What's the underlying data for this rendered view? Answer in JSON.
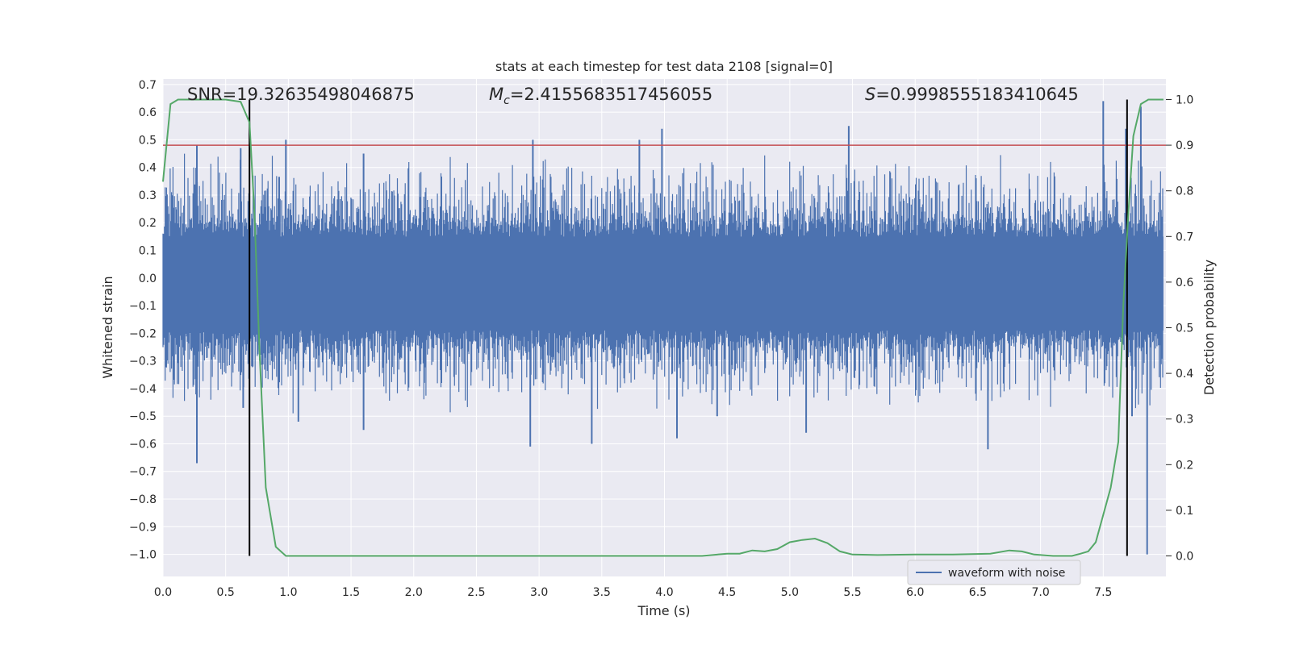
{
  "chart_data": {
    "type": "line",
    "title": "stats at each timestep for test data 2108 [signal=0]",
    "xlabel": "Time (s)",
    "ylabel": "Whitened strain",
    "ylabel_right": "Detection probability",
    "xlim": [
      0.0,
      8.0
    ],
    "ylim": [
      -1.08,
      0.72
    ],
    "ylim_right": [
      -0.045,
      1.045
    ],
    "grid": true,
    "xticks": [
      "0.0",
      "0.5",
      "1.0",
      "1.5",
      "2.0",
      "2.5",
      "3.0",
      "3.5",
      "4.0",
      "4.5",
      "5.0",
      "5.5",
      "6.0",
      "6.5",
      "7.0",
      "7.5"
    ],
    "yticks": [
      "0.7",
      "0.6",
      "0.5",
      "0.4",
      "0.3",
      "0.2",
      "0.1",
      "0.0",
      "−0.1",
      "−0.2",
      "−0.3",
      "−0.4",
      "−0.5",
      "−0.6",
      "−0.7",
      "−0.8",
      "−0.9",
      "−1.0"
    ],
    "yticks_right": [
      "1.0",
      "0.9",
      "0.8",
      "0.7",
      "0.6",
      "0.5",
      "0.4",
      "0.3",
      "0.2",
      "0.1",
      "0.0"
    ],
    "annotations": {
      "snr": "SNR=19.32635498046875",
      "mc_symbol": "M",
      "mc_sub": "c",
      "mc_value": "=2.4155683517456055",
      "s_symbol": "S",
      "s_value": "=0.9998555183410645"
    },
    "threshold": {
      "axis": "right",
      "value": 0.9,
      "color": "#c44e52"
    },
    "vlines": [
      0.69,
      7.69
    ],
    "series": [
      {
        "name": "waveform with noise",
        "axis": "left",
        "color": "#4c72b0",
        "description": "noisy whitened strain ~ amplitude band ±0.2 with spikes to ±0.5, final spike to −1.0 at t≈7.85",
        "spikes": [
          [
            0.27,
            0.48
          ],
          [
            0.27,
            -0.67
          ],
          [
            0.62,
            0.47
          ],
          [
            0.64,
            -0.47
          ],
          [
            0.98,
            0.5
          ],
          [
            1.08,
            -0.52
          ],
          [
            1.6,
            0.45
          ],
          [
            1.6,
            -0.55
          ],
          [
            2.95,
            0.5
          ],
          [
            2.93,
            -0.61
          ],
          [
            3.42,
            -0.6
          ],
          [
            3.8,
            0.5
          ],
          [
            3.98,
            0.54
          ],
          [
            4.1,
            -0.58
          ],
          [
            4.42,
            -0.5
          ],
          [
            5.47,
            0.55
          ],
          [
            5.13,
            -0.56
          ],
          [
            6.58,
            -0.62
          ],
          [
            7.5,
            0.64
          ],
          [
            7.68,
            0.54
          ],
          [
            7.73,
            -0.5
          ],
          [
            7.8,
            0.62
          ],
          [
            7.85,
            -1.0
          ]
        ]
      },
      {
        "name": "",
        "axis": "right",
        "color": "#55a868",
        "x": [
          0.0,
          0.06,
          0.12,
          0.2,
          0.3,
          0.4,
          0.5,
          0.62,
          0.69,
          0.73,
          0.77,
          0.82,
          0.9,
          0.98,
          1.1,
          1.5,
          2.0,
          2.5,
          3.0,
          3.5,
          4.0,
          4.3,
          4.5,
          4.6,
          4.7,
          4.8,
          4.9,
          5.0,
          5.1,
          5.2,
          5.3,
          5.4,
          5.5,
          5.7,
          6.0,
          6.3,
          6.6,
          6.75,
          6.85,
          6.95,
          7.1,
          7.25,
          7.32,
          7.38,
          7.44,
          7.5,
          7.56,
          7.62,
          7.66,
          7.7,
          7.74,
          7.8,
          7.86,
          7.92,
          7.98
        ],
        "y": [
          0.82,
          0.99,
          1.0,
          1.0,
          1.0,
          1.0,
          1.0,
          0.995,
          0.95,
          0.75,
          0.45,
          0.15,
          0.02,
          0.0,
          0.0,
          0.0,
          0.0,
          0.0,
          0.0,
          0.0,
          0.0,
          0.0,
          0.005,
          0.005,
          0.012,
          0.01,
          0.015,
          0.03,
          0.035,
          0.038,
          0.028,
          0.01,
          0.003,
          0.002,
          0.003,
          0.003,
          0.005,
          0.012,
          0.01,
          0.003,
          0.0,
          0.0,
          0.005,
          0.01,
          0.03,
          0.09,
          0.15,
          0.25,
          0.55,
          0.75,
          0.92,
          0.99,
          1.0,
          1.0,
          1.0
        ]
      }
    ],
    "legend": {
      "placement": "lower-right",
      "entries": [
        "waveform with noise"
      ]
    }
  }
}
